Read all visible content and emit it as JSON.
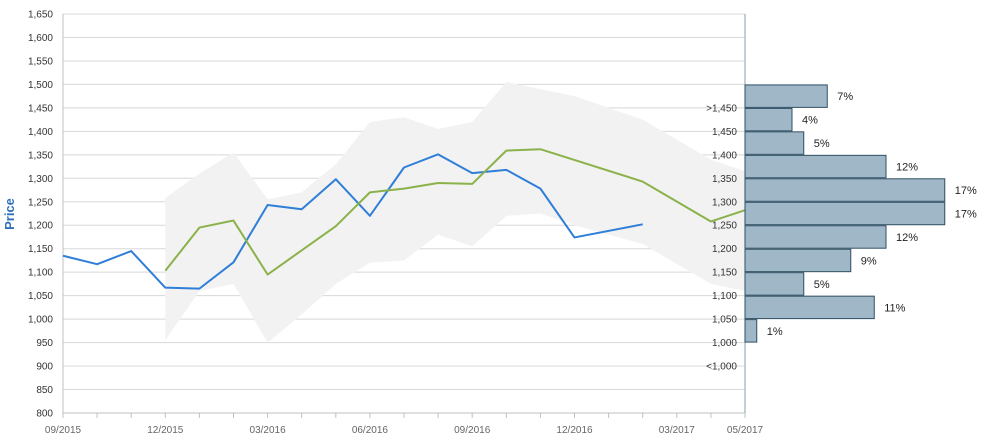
{
  "chart_data": [
    {
      "type": "line",
      "title": "",
      "xlabel": "",
      "ylabel": "Price",
      "ylim": [
        800,
        1650
      ],
      "y_ticks": [
        "800",
        "850",
        "900",
        "950",
        "1,000",
        "1,050",
        "1,100",
        "1,150",
        "1,200",
        "1,250",
        "1,300",
        "1,350",
        "1,400",
        "1,450",
        "1,500",
        "1,550",
        "1,600",
        "1,650"
      ],
      "x_ticks": [
        "09/2015",
        "12/2015",
        "03/2016",
        "06/2016",
        "09/2016",
        "12/2016",
        "03/2017",
        "05/2017"
      ],
      "x_range": [
        "2015-09",
        "2017-05"
      ],
      "grid": true,
      "series": [
        {
          "color": "#2f7ed8",
          "points": [
            {
              "x": "2015-09",
              "y": 1135
            },
            {
              "x": "2015-10",
              "y": 1117
            },
            {
              "x": "2015-11",
              "y": 1145
            },
            {
              "x": "2015-12",
              "y": 1067
            },
            {
              "x": "2016-01",
              "y": 1065
            },
            {
              "x": "2016-02",
              "y": 1121
            },
            {
              "x": "2016-03",
              "y": 1243
            },
            {
              "x": "2016-04",
              "y": 1234
            },
            {
              "x": "2016-05",
              "y": 1298
            },
            {
              "x": "2016-06",
              "y": 1220
            },
            {
              "x": "2016-07",
              "y": 1323
            },
            {
              "x": "2016-08",
              "y": 1351
            },
            {
              "x": "2016-09",
              "y": 1311
            },
            {
              "x": "2016-10",
              "y": 1318
            },
            {
              "x": "2016-11",
              "y": 1278
            },
            {
              "x": "2016-12",
              "y": 1174
            },
            {
              "x": "2017-02",
              "y": 1202
            }
          ]
        },
        {
          "color": "#8bb24a",
          "points": [
            {
              "x": "2015-12",
              "y": 1103
            },
            {
              "x": "2016-01",
              "y": 1195
            },
            {
              "x": "2016-02",
              "y": 1210
            },
            {
              "x": "2016-03",
              "y": 1095
            },
            {
              "x": "2016-05",
              "y": 1198
            },
            {
              "x": "2016-06",
              "y": 1270
            },
            {
              "x": "2016-07",
              "y": 1278
            },
            {
              "x": "2016-08",
              "y": 1290
            },
            {
              "x": "2016-09",
              "y": 1288
            },
            {
              "x": "2016-10",
              "y": 1359
            },
            {
              "x": "2016-11",
              "y": 1362
            },
            {
              "x": "2017-02",
              "y": 1293
            },
            {
              "x": "2017-04",
              "y": 1208
            },
            {
              "x": "2017-05",
              "y": 1232
            }
          ]
        }
      ],
      "band": {
        "color": "#f2f2f2",
        "points": [
          {
            "x": "2015-12",
            "low": 955,
            "high": 1258
          },
          {
            "x": "2016-01",
            "low": 1060,
            "high": 1310
          },
          {
            "x": "2016-02",
            "low": 1075,
            "high": 1355
          },
          {
            "x": "2016-03",
            "low": 950,
            "high": 1255
          },
          {
            "x": "2016-04",
            "low": 1010,
            "high": 1270
          },
          {
            "x": "2016-05",
            "low": 1075,
            "high": 1330
          },
          {
            "x": "2016-06",
            "low": 1120,
            "high": 1420
          },
          {
            "x": "2016-07",
            "low": 1125,
            "high": 1430
          },
          {
            "x": "2016-08",
            "low": 1180,
            "high": 1405
          },
          {
            "x": "2016-09",
            "low": 1155,
            "high": 1420
          },
          {
            "x": "2016-10",
            "low": 1220,
            "high": 1505
          },
          {
            "x": "2016-11",
            "low": 1225,
            "high": 1490
          },
          {
            "x": "2016-12",
            "low": 1200,
            "high": 1475
          },
          {
            "x": "2017-02",
            "low": 1160,
            "high": 1425
          },
          {
            "x": "2017-04",
            "low": 1075,
            "high": 1340
          },
          {
            "x": "2017-05",
            "low": 1060,
            "high": 1315
          }
        ]
      }
    },
    {
      "type": "bar",
      "orientation": "horizontal",
      "title": "",
      "buckets": [
        {
          "label": ">1,450",
          "pct": 7,
          "text": "7%"
        },
        {
          "label": "1,450",
          "pct": 4,
          "text": "4%"
        },
        {
          "label": "1,400",
          "pct": 5,
          "text": "5%"
        },
        {
          "label": "1,350",
          "pct": 12,
          "text": "12%"
        },
        {
          "label": "1,300",
          "pct": 17,
          "text": "17%"
        },
        {
          "label": "1,250",
          "pct": 17,
          "text": "17%"
        },
        {
          "label": "1,200",
          "pct": 12,
          "text": "12%"
        },
        {
          "label": "1,150",
          "pct": 9,
          "text": "9%"
        },
        {
          "label": "1,100",
          "pct": 5,
          "text": "5%"
        },
        {
          "label": "1,050",
          "pct": 11,
          "text": "11%"
        },
        {
          "label": "1,000",
          "pct": 1,
          "text": "1%"
        },
        {
          "label": "<1,000",
          "pct": null,
          "text": ""
        }
      ],
      "bar_color": "#9fb7c7",
      "bar_stroke": "#2f4f63"
    }
  ]
}
